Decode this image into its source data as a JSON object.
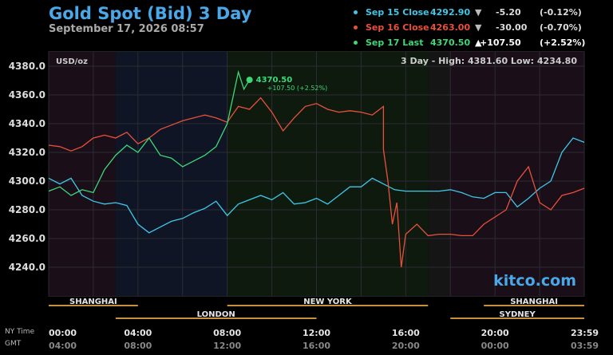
{
  "header": {
    "title": "Gold Spot (Bid) 3 Day",
    "subtitle": "September 17, 2026 08:57"
  },
  "legend": [
    {
      "label": "Sep 15 Close",
      "value": "4292.90",
      "arrow": "▼",
      "change": "-5.20",
      "pct": "(-0.12%)",
      "color": "#3ec8e8",
      "chg_color": "#dddddd"
    },
    {
      "label": "Sep 16 Close",
      "value": "4263.00",
      "arrow": "▼",
      "change": "-30.00",
      "pct": "(-0.70%)",
      "color": "#e8503c",
      "chg_color": "#dddddd"
    },
    {
      "label": "Sep 17 Last",
      "value": "4370.50",
      "arrow": "▲",
      "change": "+107.50",
      "pct": "(+2.52%)",
      "color": "#3ed878",
      "chg_color": "#ffffff"
    }
  ],
  "chart": {
    "unit_label": "USD/oz",
    "range_text": "3 Day - High: 4381.60  Low: 4234.80",
    "watermark": "kitco.com",
    "last_label": "4370.50",
    "last_change": "+107.50 (+2.52%)",
    "y_ticks": [
      "4380.0",
      "4360.0",
      "4340.0",
      "4320.0",
      "4300.0",
      "4280.0",
      "4260.0",
      "4240.0"
    ],
    "x_ticks_ny": [
      "00:00",
      "04:00",
      "08:00",
      "12:00",
      "16:00",
      "20:00",
      "23:59"
    ],
    "x_ticks_gmt": [
      "04:00",
      "08:00",
      "12:00",
      "16:00",
      "20:00",
      "00:00",
      "03:59"
    ],
    "ny_time_label": "NY Time",
    "gmt_label": "GMT",
    "sessions_top": [
      "SHANGHAI",
      "NEW YORK",
      "SHANGHAI"
    ],
    "sessions_bottom": [
      "LONDON",
      "SYDNEY"
    ]
  },
  "chart_data": {
    "type": "line",
    "title": "Gold Spot (Bid) 3 Day",
    "ylabel": "USD/oz",
    "ylim": [
      4220,
      4390
    ],
    "xlim": [
      0,
      24
    ],
    "grid": true,
    "legend_placement": "top-right",
    "high": 4381.6,
    "low": 4234.8,
    "series": [
      {
        "name": "Sep 15 Close",
        "color": "#3ec8e8",
        "x": [
          0,
          0.5,
          1,
          1.5,
          2,
          2.5,
          3,
          3.5,
          4,
          4.5,
          5,
          5.5,
          6,
          6.5,
          7,
          7.5,
          8,
          8.5,
          9,
          9.5,
          10,
          10.5,
          11,
          11.5,
          12,
          12.5,
          13,
          13.5,
          14,
          14.5,
          15,
          15.5,
          16,
          16.5,
          17,
          17.5,
          18,
          18.5,
          19,
          19.5,
          20,
          20.5,
          21,
          21.5,
          22,
          22.5,
          23,
          23.5,
          24
        ],
        "y": [
          4302,
          4298,
          4302,
          4290,
          4286,
          4284,
          4285,
          4283,
          4270,
          4264,
          4268,
          4272,
          4274,
          4278,
          4281,
          4286,
          4276,
          4284,
          4287,
          4290,
          4287,
          4292,
          4284,
          4285,
          4288,
          4284,
          4290,
          4296,
          4296,
          4302,
          4298,
          4294,
          4293,
          4293,
          4293,
          4293,
          4294,
          4292,
          4289,
          4288,
          4292,
          4292,
          4282,
          4288,
          4295,
          4300,
          4320,
          4330,
          4327
        ]
      },
      {
        "name": "Sep 16 Close",
        "color": "#e8503c",
        "x": [
          0,
          0.5,
          1,
          1.5,
          2,
          2.5,
          3,
          3.5,
          4,
          4.5,
          5,
          5.5,
          6,
          6.5,
          7,
          7.5,
          8,
          8.5,
          9,
          9.5,
          10,
          10.5,
          11,
          11.5,
          12,
          12.5,
          13,
          13.5,
          14,
          14.5,
          15,
          15,
          15.2,
          15.4,
          15.6,
          15.8,
          16,
          16.5,
          17,
          17.5,
          18,
          18.5,
          19,
          19.5,
          20,
          20.5,
          21,
          21.5,
          22,
          22.5,
          23,
          23.5,
          24
        ],
        "y": [
          4325,
          4324,
          4321,
          4324,
          4330,
          4332,
          4330,
          4334,
          4326,
          4330,
          4336,
          4339,
          4342,
          4344,
          4346,
          4344,
          4341,
          4352,
          4350,
          4358,
          4348,
          4335,
          4344,
          4352,
          4354,
          4350,
          4348,
          4349,
          4348,
          4346,
          4352,
          4322,
          4300,
          4270,
          4285,
          4240,
          4263,
          4270,
          4262,
          4263,
          4263,
          4262,
          4262,
          4270,
          4275,
          4280,
          4300,
          4310,
          4285,
          4280,
          4290,
          4292,
          4295
        ]
      },
      {
        "name": "Sep 17 Last",
        "color": "#3ed878",
        "x": [
          0,
          0.5,
          1,
          1.5,
          2,
          2.5,
          3,
          3.5,
          4,
          4.5,
          5,
          5.5,
          6,
          6.5,
          7,
          7.5,
          8,
          8.25,
          8.5,
          8.75,
          9
        ],
        "y": [
          4293,
          4296,
          4290,
          4294,
          4292,
          4308,
          4318,
          4325,
          4320,
          4330,
          4318,
          4316,
          4310,
          4314,
          4318,
          4324,
          4340,
          4358,
          4376,
          4364,
          4370.5
        ]
      }
    ]
  }
}
